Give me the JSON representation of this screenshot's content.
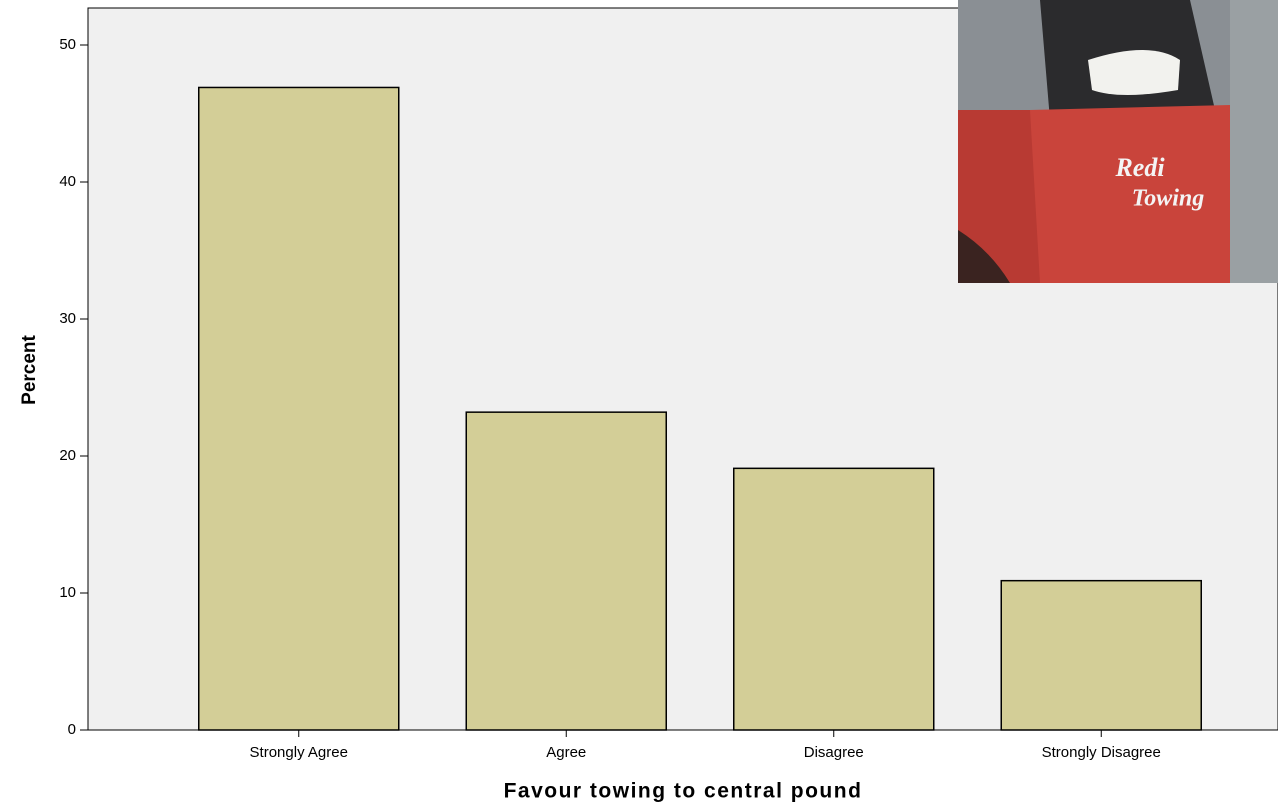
{
  "chart_data": {
    "type": "bar",
    "x_label": "Favour towing to central pound",
    "y_label": "Percent",
    "categories": [
      "Strongly Agree",
      "Agree",
      "Disagree",
      "Strongly Disagree"
    ],
    "values": [
      46.9,
      23.2,
      19.1,
      10.9
    ],
    "color": "#d3ce97",
    "ylim": [
      0,
      52.7
    ],
    "yticks": [
      0,
      10,
      20,
      30,
      40,
      50
    ],
    "grid": false,
    "annotations": [
      "Redi",
      "Towing"
    ]
  }
}
